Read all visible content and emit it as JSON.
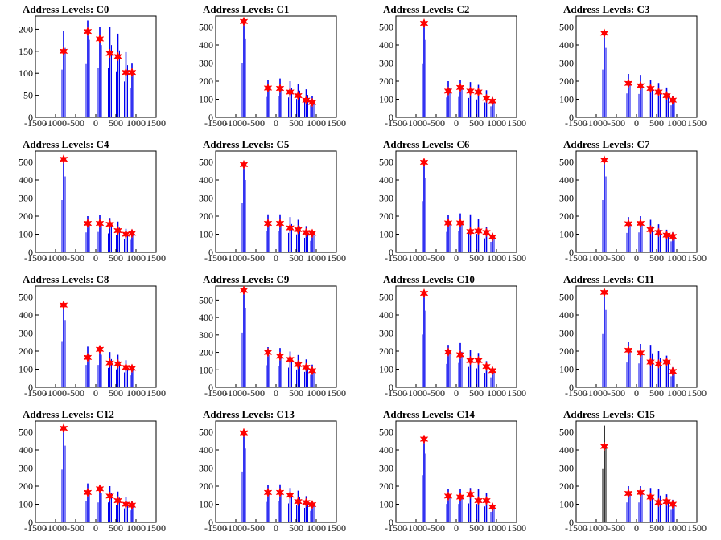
{
  "colors": {
    "bars": "#0000ee",
    "bars_dark": "#000000",
    "markers": "#ff0000",
    "axis": "#000000",
    "background": "#ffffff"
  },
  "chart_data": [
    {
      "type": "bar",
      "title": "Address Levels: C0",
      "xlim": [
        -1500,
        1500
      ],
      "ylim": [
        0,
        230
      ],
      "x_ticks": [
        "-1500",
        "-1000",
        "-500",
        "0",
        "500",
        "1000",
        "1500"
      ],
      "y_ticks": [
        "0",
        "50",
        "100",
        "150",
        "200"
      ],
      "peak_x": [
        -800,
        -200,
        100,
        350,
        550,
        750,
        900
      ],
      "bar_heights": [
        197,
        220,
        205,
        205,
        190,
        148,
        122
      ],
      "marker_values": [
        150,
        195,
        178,
        145,
        138,
        102,
        102
      ]
    },
    {
      "type": "bar",
      "title": "Address Levels: C1",
      "xlim": [
        -1500,
        1500
      ],
      "ylim": [
        0,
        560
      ],
      "x_ticks": [
        "-1500",
        "-1000",
        "-500",
        "0",
        "500",
        "1000",
        "1500"
      ],
      "y_ticks": [
        "0",
        "100",
        "200",
        "300",
        "400",
        "500"
      ],
      "peak_x": [
        -800,
        -200,
        100,
        350,
        550,
        750,
        900
      ],
      "bar_heights": [
        545,
        205,
        215,
        200,
        185,
        155,
        120
      ],
      "marker_values": [
        530,
        162,
        160,
        140,
        120,
        95,
        82
      ]
    },
    {
      "type": "bar",
      "title": "Address Levels: C2",
      "xlim": [
        -1500,
        1500
      ],
      "ylim": [
        0,
        560
      ],
      "x_ticks": [
        "-1500",
        "-1000",
        "-500",
        "0",
        "500",
        "1000",
        "1500"
      ],
      "y_ticks": [
        "0",
        "100",
        "200",
        "300",
        "400",
        "500"
      ],
      "peak_x": [
        -800,
        -200,
        100,
        350,
        550,
        750,
        900
      ],
      "bar_heights": [
        535,
        200,
        205,
        195,
        180,
        150,
        110
      ],
      "marker_values": [
        520,
        145,
        165,
        145,
        140,
        105,
        90
      ]
    },
    {
      "type": "bar",
      "title": "Address Levels: C3",
      "xlim": [
        -1500,
        1500
      ],
      "ylim": [
        0,
        560
      ],
      "x_ticks": [
        "-1500",
        "-1000",
        "-500",
        "0",
        "500",
        "1000",
        "1500"
      ],
      "y_ticks": [
        "0",
        "100",
        "200",
        "300",
        "400",
        "500"
      ],
      "peak_x": [
        -800,
        -200,
        100,
        350,
        550,
        750,
        900
      ],
      "bar_heights": [
        480,
        240,
        235,
        205,
        190,
        165,
        120
      ],
      "marker_values": [
        465,
        188,
        175,
        160,
        140,
        120,
        95
      ]
    },
    {
      "type": "bar",
      "title": "Address Levels: C4",
      "xlim": [
        -1500,
        1500
      ],
      "ylim": [
        0,
        560
      ],
      "x_ticks": [
        "-1500",
        "-1000",
        "-500",
        "0",
        "500",
        "1000",
        "1500"
      ],
      "y_ticks": [
        "0",
        "100",
        "200",
        "300",
        "400",
        "500"
      ],
      "peak_x": [
        -800,
        -200,
        100,
        350,
        550,
        750,
        900
      ],
      "bar_heights": [
        525,
        200,
        205,
        190,
        170,
        130,
        125
      ],
      "marker_values": [
        515,
        160,
        160,
        155,
        120,
        100,
        105
      ]
    },
    {
      "type": "bar",
      "title": "Address Levels: C5",
      "xlim": [
        -1500,
        1500
      ],
      "ylim": [
        0,
        560
      ],
      "x_ticks": [
        "-1500",
        "-1000",
        "-500",
        "0",
        "500",
        "1000",
        "1500"
      ],
      "y_ticks": [
        "0",
        "100",
        "200",
        "300",
        "400",
        "500"
      ],
      "peak_x": [
        -800,
        -200,
        100,
        350,
        550,
        750,
        900
      ],
      "bar_heights": [
        500,
        210,
        210,
        195,
        180,
        145,
        115
      ],
      "marker_values": [
        485,
        160,
        160,
        135,
        125,
        110,
        105
      ]
    },
    {
      "type": "bar",
      "title": "Address Levels: C6",
      "xlim": [
        -1500,
        1500
      ],
      "ylim": [
        0,
        560
      ],
      "x_ticks": [
        "-1500",
        "-1000",
        "-500",
        "0",
        "500",
        "1000",
        "1500"
      ],
      "y_ticks": [
        "0",
        "100",
        "200",
        "300",
        "400",
        "500"
      ],
      "peak_x": [
        -800,
        -200,
        100,
        350,
        550,
        750,
        900
      ],
      "bar_heights": [
        515,
        205,
        215,
        210,
        185,
        140,
        105
      ],
      "marker_values": [
        498,
        162,
        162,
        115,
        118,
        110,
        85
      ]
    },
    {
      "type": "bar",
      "title": "Address Levels: C7",
      "xlim": [
        -1500,
        1500
      ],
      "ylim": [
        0,
        560
      ],
      "x_ticks": [
        "-1500",
        "-1000",
        "-500",
        "0",
        "500",
        "1000",
        "1500"
      ],
      "y_ticks": [
        "0",
        "100",
        "200",
        "300",
        "400",
        "500"
      ],
      "peak_x": [
        -800,
        -200,
        100,
        350,
        550,
        750,
        900
      ],
      "bar_heights": [
        525,
        195,
        200,
        180,
        155,
        125,
        110
      ],
      "marker_values": [
        510,
        158,
        160,
        125,
        110,
        95,
        88
      ]
    },
    {
      "type": "bar",
      "title": "Address Levels: C8",
      "xlim": [
        -1500,
        1500
      ],
      "ylim": [
        0,
        560
      ],
      "x_ticks": [
        "-1500",
        "-1000",
        "-500",
        "0",
        "500",
        "1000",
        "1500"
      ],
      "y_ticks": [
        "0",
        "100",
        "200",
        "300",
        "400",
        "500"
      ],
      "peak_x": [
        -800,
        -200,
        100,
        350,
        550,
        750,
        900
      ],
      "bar_heights": [
        465,
        225,
        225,
        195,
        180,
        150,
        120
      ],
      "marker_values": [
        455,
        165,
        210,
        135,
        130,
        110,
        105
      ]
    },
    {
      "type": "bar",
      "title": "Address Levels: C9",
      "xlim": [
        -1500,
        1500
      ],
      "ylim": [
        0,
        580
      ],
      "x_ticks": [
        "-1500",
        "-1000",
        "-500",
        "0",
        "500",
        "1000",
        "1500"
      ],
      "y_ticks": [
        "0",
        "100",
        "200",
        "300",
        "400",
        "500"
      ],
      "peak_x": [
        -800,
        -200,
        100,
        350,
        550,
        750,
        900
      ],
      "bar_heights": [
        570,
        230,
        225,
        205,
        185,
        160,
        130
      ],
      "marker_values": [
        555,
        200,
        178,
        160,
        130,
        115,
        95
      ]
    },
    {
      "type": "bar",
      "title": "Address Levels: C10",
      "xlim": [
        -1500,
        1500
      ],
      "ylim": [
        0,
        560
      ],
      "x_ticks": [
        "-1500",
        "-1000",
        "-500",
        "0",
        "500",
        "1000",
        "1500"
      ],
      "y_ticks": [
        "0",
        "100",
        "200",
        "300",
        "400",
        "500"
      ],
      "peak_x": [
        -800,
        -200,
        100,
        350,
        550,
        750,
        900
      ],
      "bar_heights": [
        530,
        235,
        245,
        205,
        190,
        145,
        100
      ],
      "marker_values": [
        520,
        195,
        180,
        148,
        148,
        115,
        92
      ]
    },
    {
      "type": "bar",
      "title": "Address Levels: C11",
      "xlim": [
        -1500,
        1500
      ],
      "ylim": [
        0,
        560
      ],
      "x_ticks": [
        "-1500",
        "-1000",
        "-500",
        "0",
        "500",
        "1000",
        "1500"
      ],
      "y_ticks": [
        "0",
        "100",
        "200",
        "300",
        "400",
        "500"
      ],
      "peak_x": [
        -800,
        -200,
        100,
        350,
        550,
        750,
        900
      ],
      "bar_heights": [
        535,
        250,
        240,
        235,
        200,
        175,
        110
      ],
      "marker_values": [
        525,
        205,
        190,
        140,
        130,
        140,
        88
      ]
    },
    {
      "type": "bar",
      "title": "Address Levels: C12",
      "xlim": [
        -1500,
        1500
      ],
      "ylim": [
        0,
        560
      ],
      "x_ticks": [
        "-1500",
        "-1000",
        "-500",
        "0",
        "500",
        "1000",
        "1500"
      ],
      "y_ticks": [
        "0",
        "100",
        "200",
        "300",
        "400",
        "500"
      ],
      "peak_x": [
        -800,
        -200,
        100,
        350,
        550,
        750,
        900
      ],
      "bar_heights": [
        530,
        215,
        200,
        200,
        170,
        140,
        120
      ],
      "marker_values": [
        520,
        165,
        185,
        145,
        120,
        100,
        95
      ]
    },
    {
      "type": "bar",
      "title": "Address Levels: C13",
      "xlim": [
        -1500,
        1500
      ],
      "ylim": [
        0,
        560
      ],
      "x_ticks": [
        "-1500",
        "-1000",
        "-500",
        "0",
        "500",
        "1000",
        "1500"
      ],
      "y_ticks": [
        "0",
        "100",
        "200",
        "300",
        "400",
        "500"
      ],
      "peak_x": [
        -800,
        -200,
        100,
        350,
        550,
        750,
        900
      ],
      "bar_heights": [
        510,
        205,
        210,
        190,
        175,
        145,
        115
      ],
      "marker_values": [
        495,
        165,
        165,
        150,
        115,
        110,
        98
      ]
    },
    {
      "type": "bar",
      "title": "Address Levels: C14",
      "xlim": [
        -1500,
        1500
      ],
      "ylim": [
        0,
        560
      ],
      "x_ticks": [
        "-1500",
        "-1000",
        "-500",
        "0",
        "500",
        "1000",
        "1500"
      ],
      "y_ticks": [
        "0",
        "100",
        "200",
        "300",
        "400",
        "500"
      ],
      "peak_x": [
        -800,
        -200,
        100,
        350,
        550,
        750,
        900
      ],
      "bar_heights": [
        475,
        185,
        185,
        190,
        185,
        160,
        105
      ],
      "marker_values": [
        460,
        145,
        140,
        155,
        120,
        120,
        85
      ]
    },
    {
      "type": "bar",
      "title": "Address Levels: C15",
      "xlim": [
        -1500,
        1500
      ],
      "ylim": [
        0,
        560
      ],
      "x_ticks": [
        "-1500",
        "-1000",
        "-500",
        "0",
        "500",
        "1000",
        "1500"
      ],
      "y_ticks": [
        "0",
        "100",
        "200",
        "300",
        "400",
        "500"
      ],
      "peak_x": [
        -800,
        -200,
        100,
        350,
        550,
        750,
        900
      ],
      "bar_heights": [
        535,
        200,
        200,
        190,
        185,
        155,
        125
      ],
      "marker_values": [
        420,
        160,
        165,
        140,
        110,
        115,
        100
      ]
    }
  ]
}
